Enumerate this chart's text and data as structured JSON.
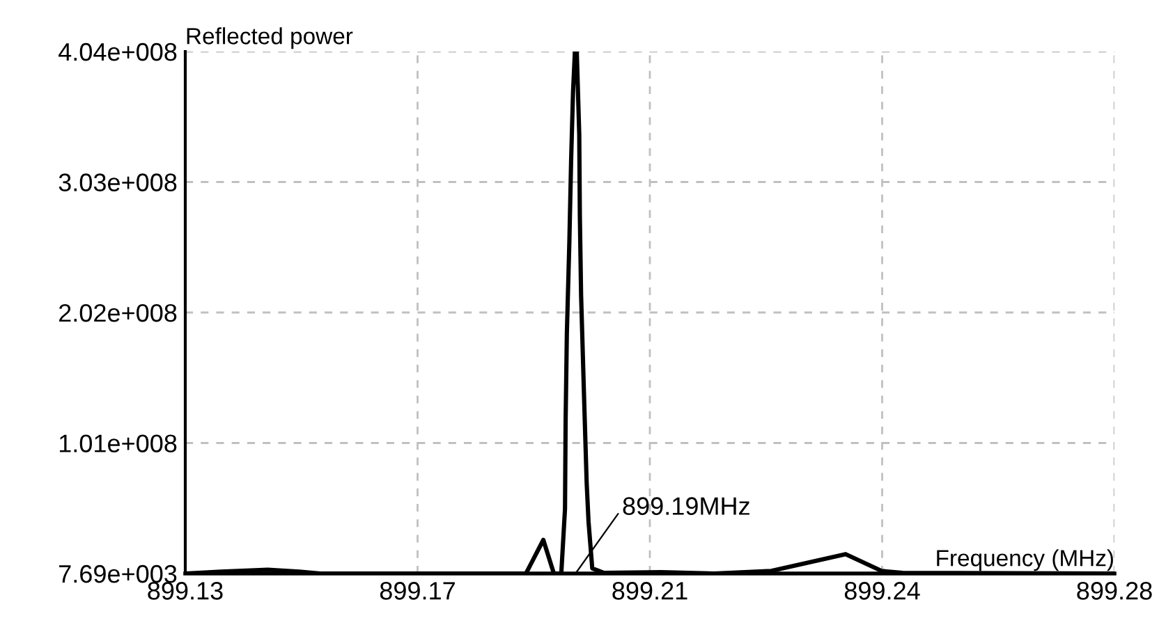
{
  "chart_data": {
    "type": "line",
    "xlabel": "Frequency (MHz)",
    "ylabel": "Reflected power",
    "x": [
      899.13,
      899.1358,
      899.1433,
      899.1484,
      899.1518,
      899.185,
      899.1878,
      899.1895,
      899.1907,
      899.1913,
      899.1914,
      899.1916,
      899.192,
      899.1923,
      899.1926,
      899.1929,
      899.1932,
      899.1936,
      899.1937,
      899.1939,
      899.1944,
      899.1948,
      899.1951,
      899.1957,
      899.1976,
      899.2068,
      899.2154,
      899.2246,
      899.2366,
      899.2424,
      899.2458,
      899.28
    ],
    "series": [
      {
        "color": "#000000",
        "values": [
          7690,
          1500000,
          3000000,
          1500000,
          7690,
          7690,
          26000000,
          7690,
          7690,
          50000000,
          118000000,
          186000000,
          256000000,
          322000000,
          373000000,
          404000000,
          404000000,
          340000000,
          276000000,
          215000000,
          133000000,
          70000000,
          40000000,
          4000000,
          500000,
          1000000,
          7690,
          2000000,
          15000000,
          2000000,
          500000,
          7690
        ]
      }
    ],
    "xlim": [
      899.13,
      899.28
    ],
    "ylim": [
      7690,
      404000000
    ],
    "xticks": [
      {
        "value": 899.13,
        "label": "899.13"
      },
      {
        "value": 899.1675,
        "label": "899.17"
      },
      {
        "value": 899.205,
        "label": "899.21"
      },
      {
        "value": 899.2425,
        "label": "899.24"
      },
      {
        "value": 899.28,
        "label": "899.28"
      }
    ],
    "yticks": [
      {
        "value": 7690,
        "label": "7.69e+003"
      },
      {
        "value": 101000000,
        "label": "1.01e+008"
      },
      {
        "value": 202000000,
        "label": "2.02e+008"
      },
      {
        "value": 303000000,
        "label": "3.03e+008"
      },
      {
        "value": 404000000,
        "label": "4.04e+008"
      }
    ],
    "grid": true,
    "marker": "none",
    "line_style": "solid",
    "annotations": [
      "899.19MHz"
    ]
  }
}
